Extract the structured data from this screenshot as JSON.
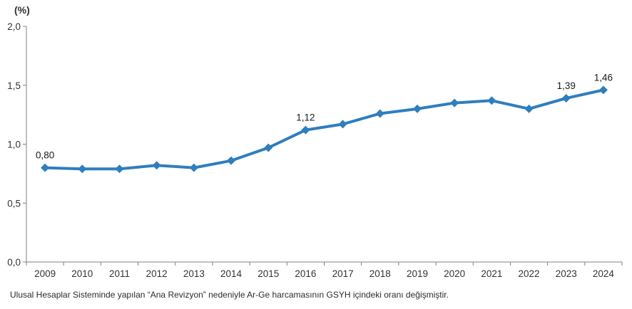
{
  "chart_data": {
    "type": "line",
    "unit_label": "(%)",
    "categories": [
      "2009",
      "2010",
      "2011",
      "2012",
      "2013",
      "2014",
      "2015",
      "2016",
      "2017",
      "2018",
      "2019",
      "2020",
      "2021",
      "2022",
      "2023",
      "2024"
    ],
    "values": [
      0.8,
      0.79,
      0.79,
      0.82,
      0.8,
      0.86,
      0.97,
      1.12,
      1.17,
      1.26,
      1.3,
      1.35,
      1.37,
      1.3,
      1.39,
      1.46
    ],
    "data_labels": {
      "2009": "0,80",
      "2016": "1,12",
      "2023": "1,39",
      "2024": "1,46"
    },
    "ylim": [
      0,
      2.0
    ],
    "ytick_values": [
      0,
      0.5,
      1.0,
      1.5,
      2.0
    ],
    "ytick_labels": [
      "0,0",
      "0,5",
      "1,0",
      "1,5",
      "2,0"
    ],
    "xlabel": "",
    "ylabel": "(%)",
    "grid": "off",
    "legend": "none",
    "line_color": "#2F7EBE",
    "marker": "diamond",
    "marker_color": "#2F7EBE",
    "axis_color": "#808080",
    "text_color": "#333333"
  },
  "footnote": "Ulusal Hesaplar Sisteminde yapılan “Ana Revizyon” nedeniyle Ar-Ge harcamasının GSYH içindeki oranı değişmiştir."
}
